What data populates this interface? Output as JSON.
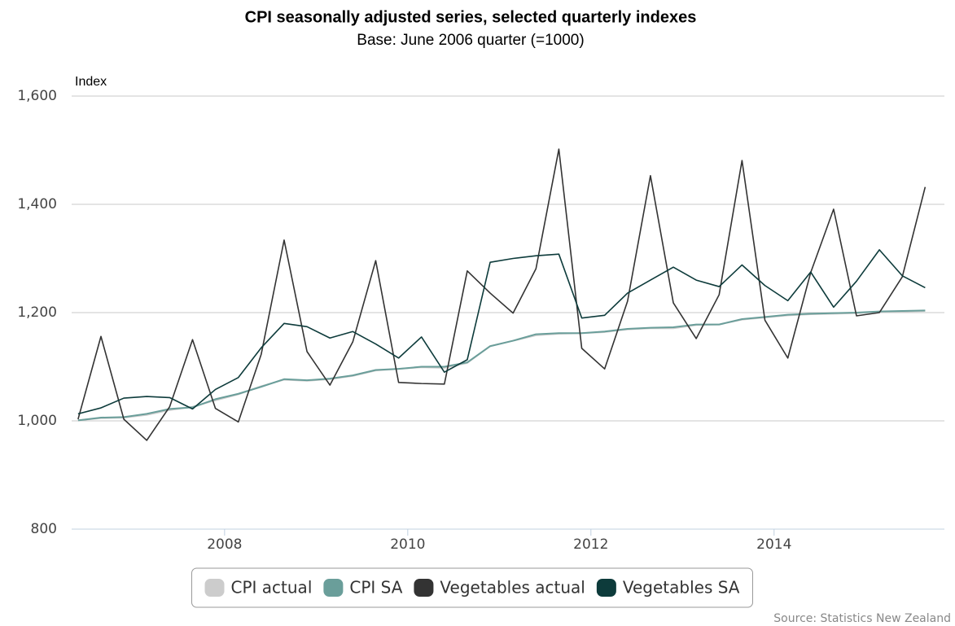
{
  "chart_data": {
    "type": "line",
    "title": "CPI seasonally adjusted series, selected quarterly indexes",
    "subtitle": "Base: June 2006 quarter (=1000)",
    "y_label": "Index",
    "source": "Source: Statistics New Zealand",
    "x": [
      2006.4,
      2006.65,
      2006.9,
      2007.15,
      2007.4,
      2007.65,
      2007.9,
      2008.15,
      2008.4,
      2008.65,
      2008.9,
      2009.15,
      2009.4,
      2009.65,
      2009.9,
      2010.15,
      2010.4,
      2010.65,
      2010.9,
      2011.15,
      2011.4,
      2011.65,
      2011.9,
      2012.15,
      2012.4,
      2012.65,
      2012.9,
      2013.15,
      2013.4,
      2013.65,
      2013.9,
      2014.15,
      2014.4,
      2014.65,
      2014.9,
      2015.15,
      2015.4,
      2015.65
    ],
    "xlim": [
      2006.33,
      2015.86
    ],
    "xticks": [
      2008,
      2010,
      2012,
      2014
    ],
    "ylim": [
      800,
      1600
    ],
    "yticks": [
      {
        "value": 800,
        "label": "800"
      },
      {
        "value": 1000,
        "label": "1,000"
      },
      {
        "value": 1200,
        "label": "1,200"
      },
      {
        "value": 1400,
        "label": "1,400"
      },
      {
        "value": 1600,
        "label": "1,600"
      }
    ],
    "grid": true,
    "legend": "bottom",
    "series": [
      {
        "name": "CPI actual",
        "color": "#cccccc",
        "values": [
          1001,
          1005,
          1006,
          1011,
          1020,
          1026,
          1038,
          1049,
          1064,
          1076,
          1074,
          1077,
          1083,
          1093,
          1096,
          1099,
          1098,
          1107,
          1138,
          1148,
          1158,
          1161,
          1162,
          1164,
          1169,
          1171,
          1171,
          1177,
          1178,
          1187,
          1191,
          1195,
          1197,
          1198,
          1199,
          1201,
          1202,
          1203
        ]
      },
      {
        "name": "CPI SA",
        "color": "#6a9e9a",
        "values": [
          1001,
          1006,
          1007,
          1013,
          1022,
          1025,
          1040,
          1050,
          1063,
          1077,
          1075,
          1078,
          1084,
          1094,
          1096,
          1100,
          1100,
          1108,
          1138,
          1148,
          1160,
          1162,
          1162,
          1165,
          1170,
          1172,
          1173,
          1178,
          1178,
          1188,
          1192,
          1196,
          1198,
          1199,
          1200,
          1202,
          1203,
          1204
        ]
      },
      {
        "name": "Vegetables actual",
        "color": "#333333",
        "values": [
          1003,
          1156,
          1003,
          964,
          1026,
          1150,
          1023,
          998,
          1123,
          1334,
          1128,
          1066,
          1146,
          1296,
          1071,
          1069,
          1068,
          1277,
          1236,
          1199,
          1281,
          1502,
          1134,
          1096,
          1221,
          1453,
          1218,
          1152,
          1233,
          1481,
          1186,
          1116,
          1274,
          1391,
          1194,
          1200,
          1266,
          1432
        ]
      },
      {
        "name": "Vegetables SA",
        "color": "#0d3b3b",
        "values": [
          1013,
          1024,
          1042,
          1045,
          1043,
          1022,
          1058,
          1080,
          1135,
          1180,
          1174,
          1153,
          1165,
          1142,
          1116,
          1155,
          1090,
          1113,
          1293,
          1300,
          1305,
          1308,
          1190,
          1195,
          1236,
          1260,
          1284,
          1260,
          1248,
          1288,
          1250,
          1222,
          1275,
          1210,
          1258,
          1316,
          1268,
          1246
        ]
      }
    ]
  }
}
